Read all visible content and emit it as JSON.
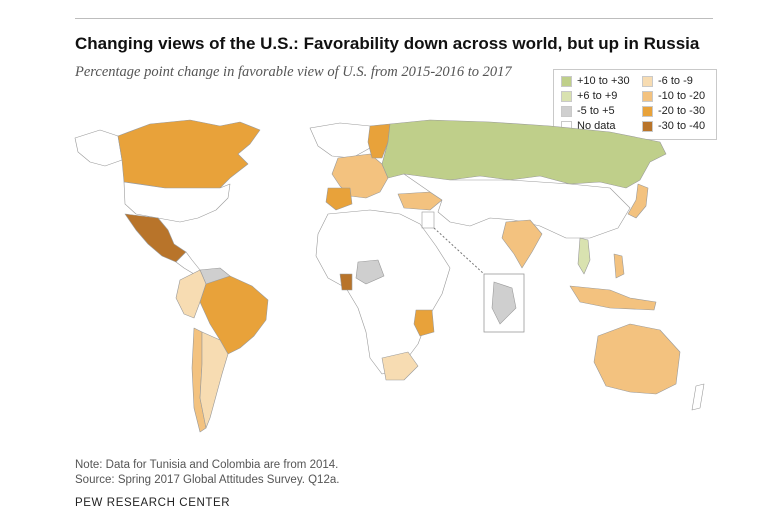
{
  "title": "Changing views of the U.S.: Favorability down across world, but up in Russia",
  "subtitle": "Percentage point change in favorable view of U.S. from 2015-2016 to 2017",
  "legend": [
    {
      "label": "+10 to +30",
      "color": "#bfcf8a"
    },
    {
      "label": "+6 to +9",
      "color": "#d9e2b0"
    },
    {
      "label": "-5 to +5",
      "color": "#cfcfcf"
    },
    {
      "label": "No data",
      "color": "#ffffff"
    },
    {
      "label": "-6 to -9",
      "color": "#f7dcb2"
    },
    {
      "label": "-10 to -20",
      "color": "#f3c27f"
    },
    {
      "label": "-20 to -30",
      "color": "#e8a23a"
    },
    {
      "label": "-30 to -40",
      "color": "#b8742a"
    }
  ],
  "map": {
    "regions": [
      {
        "name": "russia",
        "category": "+10 to +30"
      },
      {
        "name": "vietnam",
        "category": "+6 to +9"
      },
      {
        "name": "ghana",
        "category": "-30 to -40"
      },
      {
        "name": "mexico",
        "category": "-30 to -40"
      },
      {
        "name": "canada",
        "category": "-20 to -30"
      },
      {
        "name": "brazil",
        "category": "-20 to -30"
      },
      {
        "name": "sweden",
        "category": "-20 to -30"
      },
      {
        "name": "spain",
        "category": "-20 to -30"
      },
      {
        "name": "tanzania",
        "category": "-20 to -30"
      },
      {
        "name": "australia",
        "category": "-10 to -20"
      },
      {
        "name": "india",
        "category": "-10 to -20"
      },
      {
        "name": "turkey",
        "category": "-10 to -20"
      },
      {
        "name": "argentina",
        "category": "-6 to -9"
      },
      {
        "name": "south-africa",
        "category": "-6 to -9"
      },
      {
        "name": "nigeria",
        "category": "-5 to +5"
      },
      {
        "name": "venezuela",
        "category": "-5 to +5"
      },
      {
        "name": "jordan",
        "category": "-5 to +5"
      }
    ]
  },
  "notes": [
    "Note: Data for Tunisia and Colombia are from 2014.",
    "Source: Spring 2017 Global Attitudes Survey. Q12a."
  ],
  "footer": "PEW RESEARCH CENTER"
}
